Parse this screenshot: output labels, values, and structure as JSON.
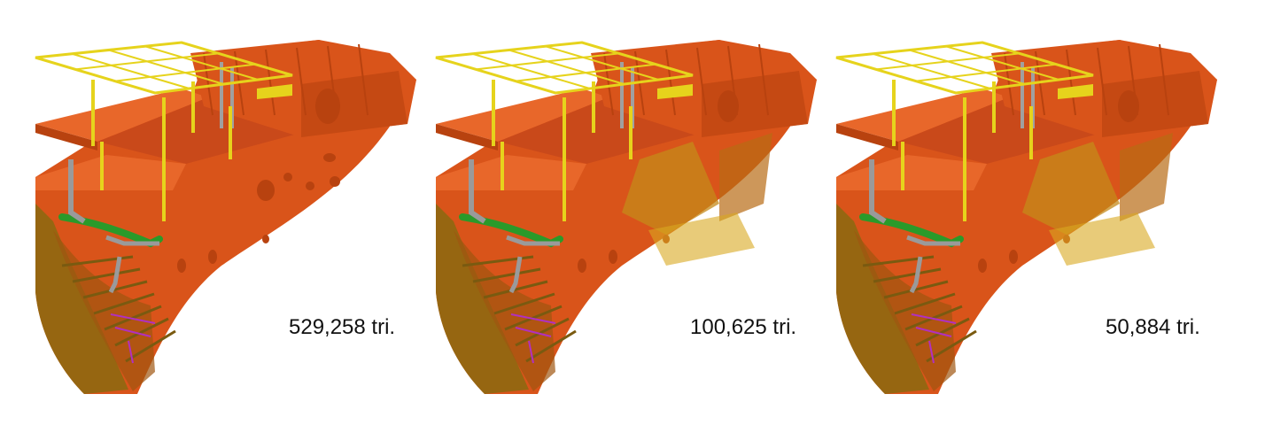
{
  "panels": [
    {
      "label": "529,258 tri."
    },
    {
      "label": "100,625 tri."
    },
    {
      "label": "50,884 tri."
    }
  ],
  "colors": {
    "hull": "#d9541a",
    "hull_dark": "#b8420f",
    "hull_light": "#e8672a",
    "deck": "#c9491a",
    "shade": "#8a6a10",
    "rail": "#e6d31c",
    "pipe_green": "#2a9a2a",
    "pipe_grey": "#9a9a9a",
    "pipe_purple": "#b030c0"
  }
}
